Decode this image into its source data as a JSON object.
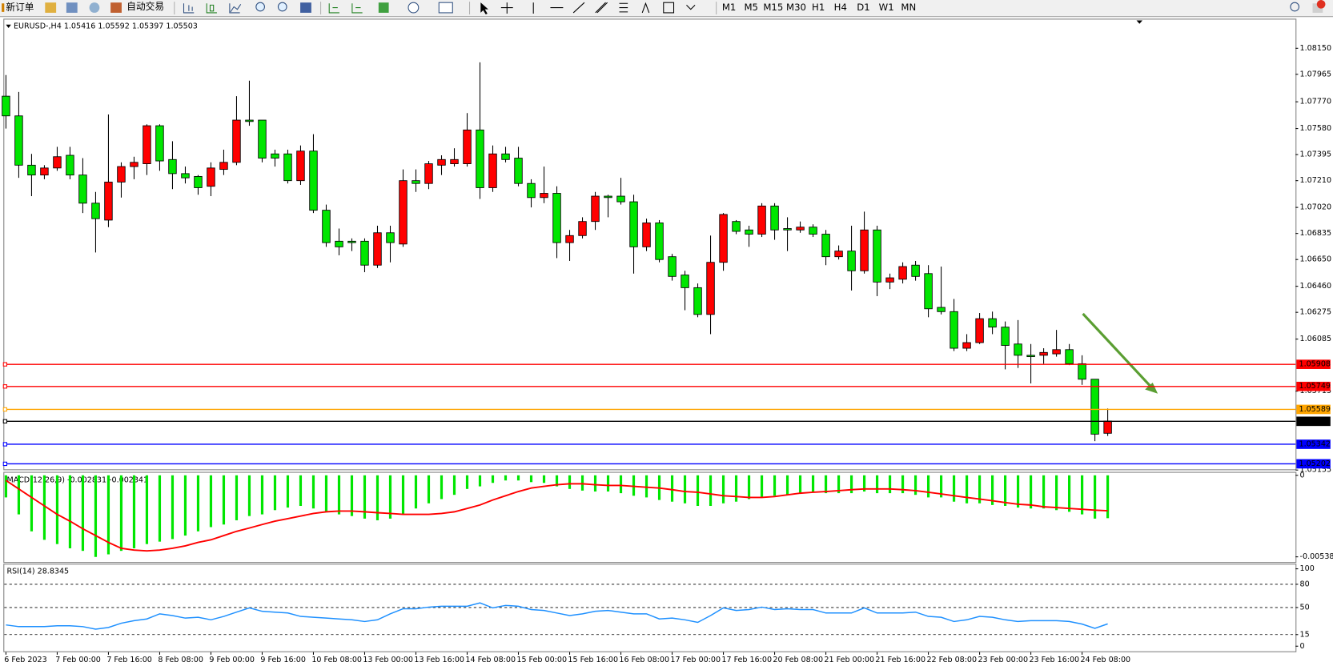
{
  "toolbar": {
    "new_order": "新订单",
    "auto_trading": "自动交易",
    "timeframes": [
      "M1",
      "M5",
      "M15",
      "M30",
      "H1",
      "H4",
      "D1",
      "W1",
      "MN"
    ]
  },
  "chart_data": [
    {
      "type": "candlestick",
      "title": "EURUSD-,H4  1.05416 1.05592 1.05397 1.05503",
      "categories": [
        "6 Feb 2023",
        null,
        null,
        null,
        "7 Feb 00:00",
        null,
        null,
        null,
        "7 Feb 16:00",
        null,
        null,
        null,
        "8 Feb 08:00",
        null,
        null,
        null,
        "9 Feb 00:00",
        null,
        null,
        null,
        "9 Feb 16:00",
        null,
        null,
        null,
        "10 Feb 08:00",
        null,
        null,
        null,
        "13 Feb 00:00",
        null,
        null,
        null,
        "13 Feb 16:00",
        null,
        null,
        null,
        "14 Feb 08:00",
        null,
        null,
        null,
        "15 Feb 00:00",
        null,
        null,
        null,
        "15 Feb 16:00",
        null,
        null,
        null,
        "16 Feb 08:00",
        null,
        null,
        null,
        "17 Feb 00:00",
        null,
        null,
        null,
        "17 Feb 16:00",
        null,
        null,
        null,
        "20 Feb 08:00",
        null,
        null,
        null,
        "21 Feb 00:00",
        null,
        null,
        null,
        "21 Feb 16:00",
        null,
        null,
        null,
        "22 Feb 08:00",
        null,
        null,
        null,
        "23 Feb 00:00",
        null,
        null,
        null,
        "23 Feb 16:00",
        null,
        null,
        null,
        "24 Feb 08:00",
        null,
        null
      ],
      "open": [
        1.0781,
        1.0767,
        1.0732,
        1.0725,
        1.073,
        1.0739,
        1.0725,
        1.0705,
        1.0693,
        1.072,
        1.0731,
        1.0733,
        1.076,
        1.0736,
        1.0726,
        1.0724,
        1.0717,
        1.0729,
        1.0734,
        1.0764,
        1.0764,
        1.074,
        1.074,
        1.0721,
        1.0742,
        1.07,
        1.0678,
        1.0678,
        1.0678,
        1.0661,
        1.0684,
        1.0676,
        1.0721,
        1.0719,
        1.0732,
        1.0733,
        1.0733,
        1.0757,
        1.0716,
        1.074,
        1.0737,
        1.0719,
        1.0709,
        1.0712,
        1.0677,
        1.0682,
        1.0692,
        1.071,
        1.071,
        1.0706,
        1.0674,
        1.0691,
        1.0667,
        1.0654,
        1.0645,
        1.0626,
        1.0663,
        1.0692,
        1.0686,
        1.0683,
        1.0703,
        1.0687,
        1.0686,
        1.0688,
        1.0683,
        1.0667,
        1.0671,
        1.0657,
        1.0686,
        1.0649,
        1.0651,
        1.0661,
        1.0655,
        1.0631,
        1.0628,
        1.0602,
        1.0606,
        1.0623,
        1.0617,
        1.0605,
        1.0597,
        1.0597,
        1.0598,
        1.0601,
        1.0591,
        1.058,
        1.05416
      ],
      "high": [
        1.0796,
        1.0784,
        1.074,
        1.0732,
        1.0745,
        1.0745,
        1.0737,
        1.0713,
        1.0768,
        1.0734,
        1.0738,
        1.0761,
        1.0761,
        1.0749,
        1.0731,
        1.0725,
        1.0734,
        1.0743,
        1.0781,
        1.0792,
        1.0764,
        1.0743,
        1.0743,
        1.0746,
        1.0754,
        1.0704,
        1.0687,
        1.068,
        1.068,
        1.0689,
        1.0689,
        1.0729,
        1.0729,
        1.0735,
        1.0739,
        1.0744,
        1.0769,
        1.0805,
        1.0746,
        1.0745,
        1.0745,
        1.0722,
        1.0731,
        1.0717,
        1.0686,
        1.0695,
        1.0713,
        1.0711,
        1.0723,
        1.0711,
        1.0694,
        1.0693,
        1.0669,
        1.0657,
        1.0648,
        1.0682,
        1.0698,
        1.0693,
        1.0689,
        1.0705,
        1.0705,
        1.0695,
        1.0692,
        1.069,
        1.0686,
        1.0675,
        1.0689,
        1.0699,
        1.0689,
        1.0655,
        1.0663,
        1.0664,
        1.0661,
        1.066,
        1.0637,
        1.0612,
        1.0627,
        1.0628,
        1.0621,
        1.0622,
        1.0605,
        1.0602,
        1.0615,
        1.0605,
        1.0597,
        1.058,
        1.05592
      ],
      "low": [
        1.0758,
        1.0723,
        1.071,
        1.0722,
        1.0728,
        1.0722,
        1.0698,
        1.067,
        1.0688,
        1.0709,
        1.0722,
        1.0725,
        1.0728,
        1.0715,
        1.0719,
        1.0711,
        1.071,
        1.0725,
        1.0732,
        1.076,
        1.0734,
        1.0731,
        1.0719,
        1.0718,
        1.0698,
        1.0674,
        1.0668,
        1.0671,
        1.0656,
        1.0659,
        1.0663,
        1.0674,
        1.0713,
        1.0715,
        1.0725,
        1.0731,
        1.0731,
        1.0708,
        1.0713,
        1.0734,
        1.0717,
        1.0702,
        1.0705,
        1.0666,
        1.0664,
        1.068,
        1.0686,
        1.0695,
        1.0704,
        1.0655,
        1.0671,
        1.0663,
        1.065,
        1.0629,
        1.0624,
        1.0612,
        1.0657,
        1.0683,
        1.0674,
        1.0681,
        1.0679,
        1.0671,
        1.0684,
        1.0681,
        1.0661,
        1.0665,
        1.0643,
        1.0655,
        1.0639,
        1.0644,
        1.0648,
        1.065,
        1.0624,
        1.0626,
        1.06,
        1.06,
        1.0605,
        1.0612,
        1.0587,
        1.0588,
        1.0577,
        1.0591,
        1.0596,
        1.059,
        1.0576,
        1.0536,
        1.05397
      ],
      "close": [
        1.0767,
        1.0732,
        1.0725,
        1.073,
        1.0738,
        1.0725,
        1.0705,
        1.0694,
        1.072,
        1.0731,
        1.0734,
        1.076,
        1.0735,
        1.0726,
        1.0723,
        1.0716,
        1.073,
        1.0734,
        1.0764,
        1.0763,
        1.0737,
        1.0737,
        1.0721,
        1.0742,
        1.07,
        1.0677,
        1.0674,
        1.0677,
        1.0661,
        1.0684,
        1.0677,
        1.0721,
        1.0719,
        1.0733,
        1.0736,
        1.0736,
        1.0757,
        1.0716,
        1.074,
        1.0736,
        1.0719,
        1.0709,
        1.0712,
        1.0677,
        1.0682,
        1.0692,
        1.071,
        1.0709,
        1.0706,
        1.0674,
        1.0691,
        1.0665,
        1.0653,
        1.0645,
        1.0626,
        1.0663,
        1.0697,
        1.0685,
        1.0683,
        1.0703,
        1.0686,
        1.0686,
        1.0688,
        1.0683,
        1.0667,
        1.0671,
        1.0657,
        1.0686,
        1.0649,
        1.0652,
        1.066,
        1.0653,
        1.063,
        1.0628,
        1.0602,
        1.0606,
        1.0623,
        1.0617,
        1.0604,
        1.0597,
        1.0596,
        1.0599,
        1.0601,
        1.0591,
        1.058,
        1.0541,
        1.05503
      ],
      "up_color": "#ff0000",
      "down_color": "#00e600",
      "ylim": [
        1.0516,
        1.0836
      ],
      "yticks": [
        {
          "value": 1.0815,
          "label": "1.08150"
        },
        1.07965,
        {
          "value": 1.0777,
          "label": "1.07770"
        },
        {
          "value": 1.0758,
          "label": "1.07580"
        },
        1.07395,
        {
          "value": 1.0721,
          "label": "1.07210"
        },
        {
          "value": 1.0702,
          "label": "1.07020"
        },
        1.06835,
        {
          "value": 1.0665,
          "label": "1.06650"
        },
        {
          "value": 1.0646,
          "label": "1.06460"
        },
        1.06275,
        1.06085,
        1.05715,
        1.05155
      ],
      "levels": [
        {
          "value": 1.05908,
          "color": "#ff0000"
        },
        {
          "value": 1.05749,
          "color": "#ff0000"
        },
        {
          "value": 1.05589,
          "color": "#ffa500"
        },
        {
          "value": 1.05503,
          "color": "#000000"
        },
        {
          "value": 1.05342,
          "color": "#0000ff"
        },
        {
          "value": 1.05202,
          "color": "#0000ff"
        }
      ]
    },
    {
      "type": "macd",
      "title": "MACD(12,26,9) -0.002831 -0.002341",
      "histogram": [
        -0.00146,
        -0.00258,
        -0.0037,
        -0.00426,
        -0.00454,
        -0.00482,
        -0.00499,
        -0.00539,
        -0.00522,
        -0.00499,
        -0.00482,
        -0.00454,
        -0.00438,
        -0.00421,
        -0.00398,
        -0.0037,
        -0.00342,
        -0.00325,
        -0.00297,
        -0.00269,
        -0.00258,
        -0.0023,
        -0.00213,
        -0.00202,
        -0.00219,
        -0.00241,
        -0.00258,
        -0.00269,
        -0.00286,
        -0.00297,
        -0.00286,
        -0.00258,
        -0.00219,
        -0.00185,
        -0.00157,
        -0.00129,
        -0.0009,
        -0.00073,
        -0.0005,
        -0.00034,
        -0.00034,
        -0.00045,
        -0.0005,
        -0.00073,
        -0.0009,
        -0.00101,
        -0.00107,
        -0.00107,
        -0.00118,
        -0.00135,
        -0.00146,
        -0.00163,
        -0.00174,
        -0.00185,
        -0.00202,
        -0.00202,
        -0.00185,
        -0.00174,
        -0.00157,
        -0.00146,
        -0.00135,
        -0.00129,
        -0.00118,
        -0.00112,
        -0.00118,
        -0.00118,
        -0.00118,
        -0.00107,
        -0.00118,
        -0.00118,
        -0.00118,
        -0.00129,
        -0.00146,
        -0.00146,
        -0.00174,
        -0.00185,
        -0.00185,
        -0.00196,
        -0.00202,
        -0.00213,
        -0.00219,
        -0.00219,
        -0.0023,
        -0.00241,
        -0.00258,
        -0.00286,
        -0.002831
      ],
      "signal": [
        -0.00034,
        -0.0009,
        -0.00146,
        -0.00202,
        -0.00258,
        -0.00303,
        -0.00353,
        -0.00398,
        -0.00443,
        -0.00482,
        -0.00494,
        -0.00499,
        -0.00494,
        -0.00482,
        -0.00466,
        -0.00443,
        -0.00426,
        -0.00398,
        -0.0037,
        -0.00348,
        -0.00325,
        -0.00303,
        -0.00286,
        -0.00269,
        -0.00252,
        -0.00241,
        -0.00236,
        -0.00236,
        -0.00241,
        -0.00247,
        -0.00252,
        -0.00258,
        -0.00258,
        -0.00258,
        -0.00252,
        -0.00241,
        -0.00219,
        -0.00196,
        -0.00163,
        -0.00135,
        -0.00107,
        -0.00084,
        -0.00073,
        -0.00062,
        -0.00056,
        -0.00056,
        -0.00062,
        -0.00067,
        -0.00067,
        -0.00073,
        -0.00079,
        -0.00084,
        -0.00095,
        -0.00107,
        -0.00112,
        -0.00123,
        -0.00135,
        -0.0014,
        -0.00146,
        -0.00146,
        -0.0014,
        -0.00129,
        -0.00118,
        -0.00112,
        -0.00107,
        -0.00101,
        -0.00095,
        -0.0009,
        -0.0009,
        -0.0009,
        -0.00095,
        -0.00101,
        -0.00112,
        -0.00123,
        -0.00135,
        -0.00146,
        -0.00157,
        -0.00168,
        -0.0018,
        -0.00191,
        -0.00196,
        -0.00208,
        -0.00213,
        -0.00219,
        -0.00224,
        -0.0023,
        -0.002341
      ],
      "histogram_color": "#00e600",
      "signal_color": "#ff0000",
      "ylim": [
        -0.00567,
        0.00017
      ],
      "yticks": [
        0,
        -0.005384
      ]
    },
    {
      "type": "line",
      "title": "RSI(14) 28.8345",
      "values": [
        27.5,
        25.3,
        25.3,
        25.3,
        26.4,
        26.4,
        25.3,
        22.0,
        24.2,
        29.7,
        33.0,
        35.2,
        41.8,
        39.6,
        36.3,
        37.4,
        34.1,
        38.5,
        44.0,
        49.5,
        45.1,
        44.0,
        42.9,
        38.5,
        37.4,
        36.3,
        35.2,
        34.1,
        31.9,
        34.1,
        41.8,
        48.4,
        48.4,
        50.5,
        51.6,
        51.6,
        51.6,
        56.0,
        49.5,
        52.7,
        51.6,
        47.3,
        46.2,
        42.9,
        39.6,
        41.8,
        45.1,
        46.2,
        44.0,
        41.8,
        41.8,
        35.2,
        36.3,
        34.1,
        30.8,
        39.6,
        49.5,
        46.2,
        47.3,
        50.5,
        47.3,
        48.4,
        47.3,
        47.3,
        42.9,
        42.9,
        42.9,
        49.5,
        42.9,
        42.9,
        42.9,
        44.0,
        38.5,
        37.4,
        31.9,
        34.1,
        38.5,
        37.4,
        34.1,
        31.9,
        33.0,
        33.0,
        33.0,
        31.9,
        28.6,
        23.1,
        28.8345
      ],
      "color": "#1e90ff",
      "ylim": [
        0,
        100
      ],
      "yticks": [
        100,
        80,
        50,
        15,
        0
      ],
      "levels": [
        80,
        50,
        15
      ]
    }
  ]
}
